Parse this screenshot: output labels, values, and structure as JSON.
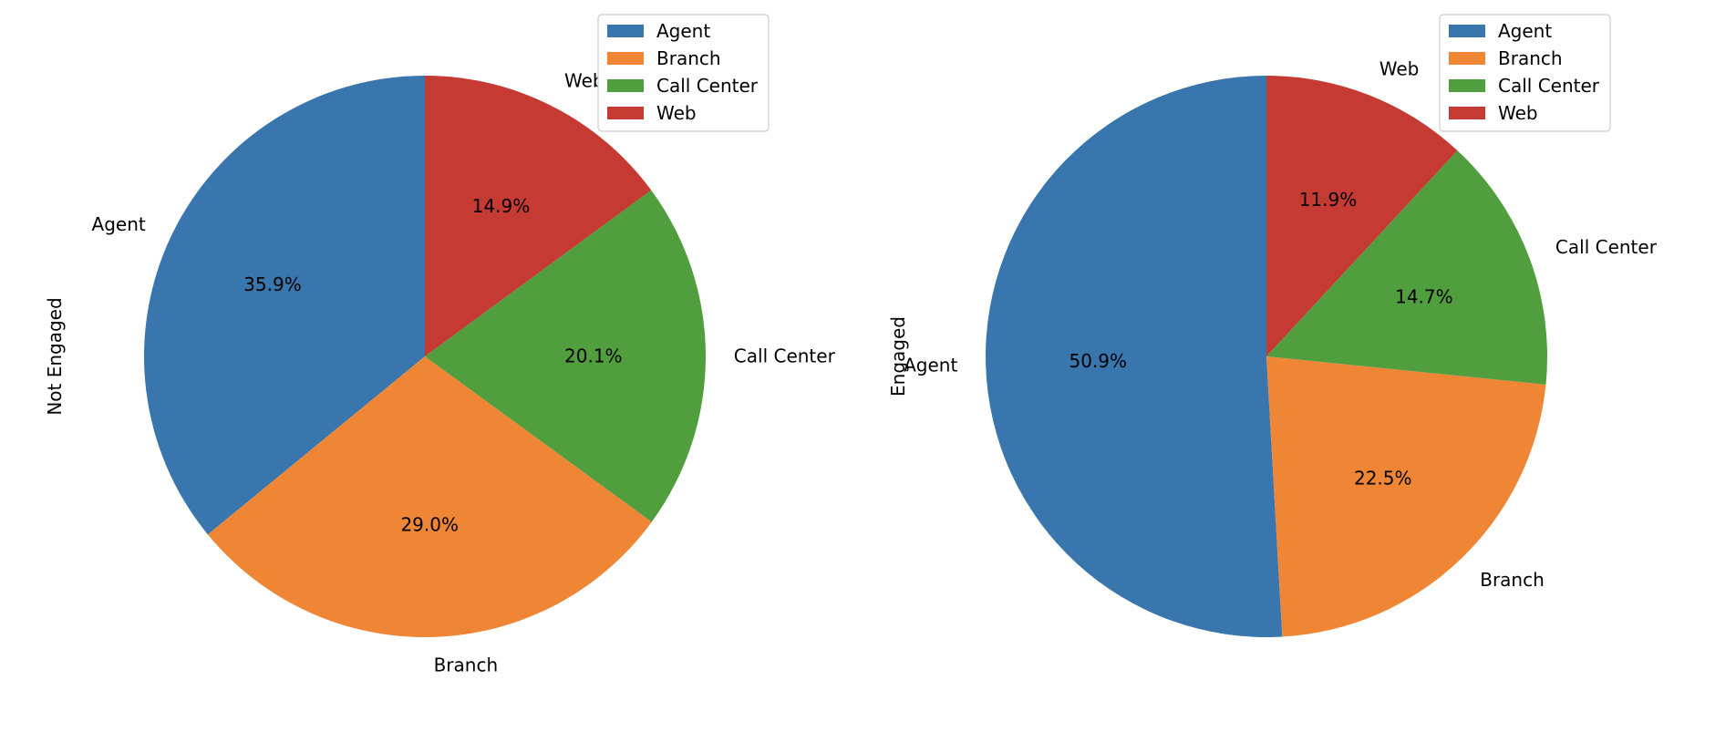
{
  "chart_data": [
    {
      "type": "pie",
      "ylabel": "Not Engaged",
      "labels": [
        "Agent",
        "Branch",
        "Call Center",
        "Web"
      ],
      "values": [
        35.9,
        29.0,
        20.1,
        14.9
      ],
      "percent_labels": [
        "35.9%",
        "29.0%",
        "20.1%",
        "14.9%"
      ],
      "colors": [
        "#3a76ae",
        "#ef8636",
        "#519e3e",
        "#c53a32"
      ],
      "legend": {
        "entries": [
          "Agent",
          "Branch",
          "Call Center",
          "Web"
        ],
        "placement": "top-right"
      }
    },
    {
      "type": "pie",
      "ylabel": "Engaged",
      "labels": [
        "Agent",
        "Branch",
        "Call Center",
        "Web"
      ],
      "values": [
        50.9,
        22.5,
        14.7,
        11.9
      ],
      "percent_labels": [
        "50.9%",
        "22.5%",
        "14.7%",
        "11.9%"
      ],
      "colors": [
        "#3a76ae",
        "#ef8636",
        "#519e3e",
        "#c53a32"
      ],
      "legend": {
        "entries": [
          "Agent",
          "Branch",
          "Call Center",
          "Web"
        ],
        "placement": "top-right"
      }
    }
  ]
}
